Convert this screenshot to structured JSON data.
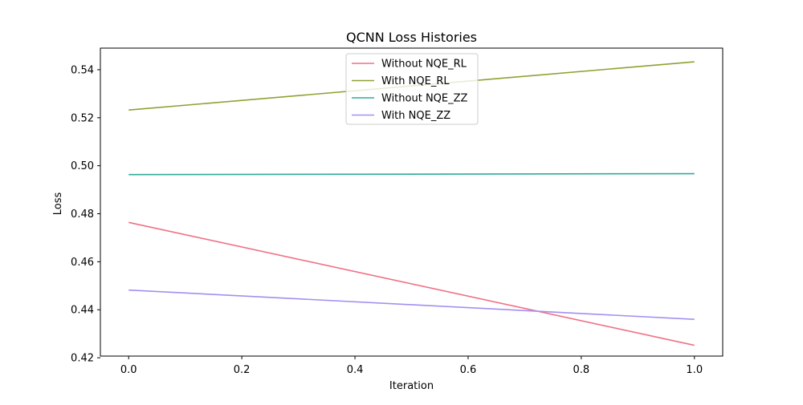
{
  "chart_data": {
    "type": "line",
    "title": "QCNN Loss Histories",
    "xlabel": "Iteration",
    "ylabel": "Loss",
    "xlim": [
      -0.05,
      1.05
    ],
    "ylim": [
      0.4207,
      0.549
    ],
    "xticks": [
      0.0,
      0.2,
      0.4,
      0.6,
      0.8,
      1.0
    ],
    "xtick_labels": [
      "0.0",
      "0.2",
      "0.4",
      "0.6",
      "0.8",
      "1.0"
    ],
    "yticks": [
      0.42,
      0.44,
      0.46,
      0.48,
      0.5,
      0.52,
      0.54
    ],
    "ytick_labels": [
      "0.42",
      "0.44",
      "0.46",
      "0.48",
      "0.50",
      "0.52",
      "0.54"
    ],
    "grid": false,
    "legend_position": "top-center",
    "x": [
      0,
      1
    ],
    "series": [
      {
        "name": "Without NQE_RL",
        "values": [
          0.4764,
          0.4252
        ],
        "color": "#f07084"
      },
      {
        "name": "With NQE_RL",
        "values": [
          0.5232,
          0.5433
        ],
        "color": "#8da232"
      },
      {
        "name": "Without NQE_ZZ",
        "values": [
          0.4963,
          0.4967
        ],
        "color": "#2fab9a"
      },
      {
        "name": "With NQE_ZZ",
        "values": [
          0.4482,
          0.436
        ],
        "color": "#a48ff0"
      }
    ]
  }
}
